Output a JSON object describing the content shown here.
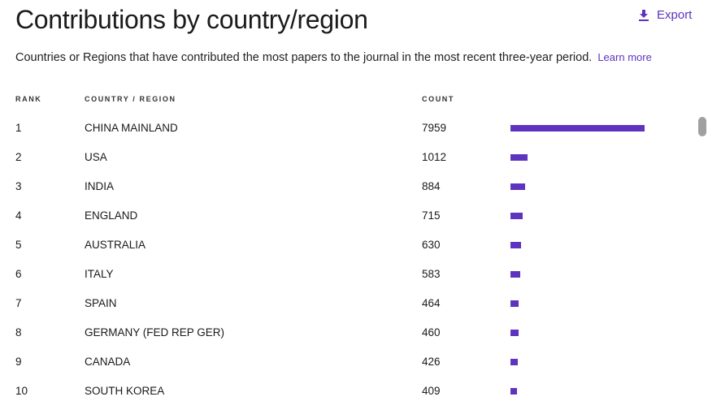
{
  "header": {
    "title": "Contributions by country/region",
    "export_label": "Export",
    "description": "Countries or Regions that have contributed the most papers to the journal in the most recent three-year period.",
    "learn_more": "Learn more"
  },
  "table": {
    "columns": [
      "RANK",
      "COUNTRY / REGION",
      "COUNT"
    ],
    "bar_color": "#5e33bf",
    "rows": [
      {
        "rank": "1",
        "country": "CHINA MAINLAND",
        "count": "7959",
        "value": 7959
      },
      {
        "rank": "2",
        "country": "USA",
        "count": "1012",
        "value": 1012
      },
      {
        "rank": "3",
        "country": "INDIA",
        "count": "884",
        "value": 884
      },
      {
        "rank": "4",
        "country": "ENGLAND",
        "count": "715",
        "value": 715
      },
      {
        "rank": "5",
        "country": "AUSTRALIA",
        "count": "630",
        "value": 630
      },
      {
        "rank": "6",
        "country": "ITALY",
        "count": "583",
        "value": 583
      },
      {
        "rank": "7",
        "country": "SPAIN",
        "count": "464",
        "value": 464
      },
      {
        "rank": "8",
        "country": "GERMANY (FED REP GER)",
        "count": "460",
        "value": 460
      },
      {
        "rank": "9",
        "country": "CANADA",
        "count": "426",
        "value": 426
      },
      {
        "rank": "10",
        "country": "SOUTH KOREA",
        "count": "409",
        "value": 409
      }
    ]
  }
}
